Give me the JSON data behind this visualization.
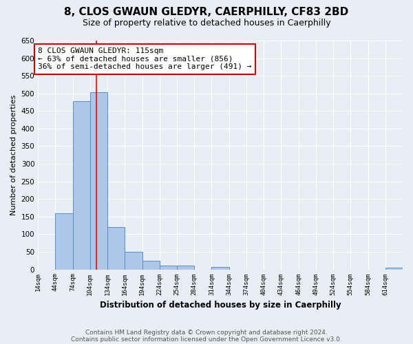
{
  "title": "8, CLOS GWAUN GLEDYR, CAERPHILLY, CF83 2BD",
  "subtitle": "Size of property relative to detached houses in Caerphilly",
  "xlabel": "Distribution of detached houses by size in Caerphilly",
  "ylabel": "Number of detached properties",
  "bar_left_edges": [
    14,
    44,
    74,
    104,
    134,
    164,
    194,
    224,
    254,
    284,
    314,
    344,
    374,
    404,
    434,
    464,
    494,
    524,
    554,
    584,
    614
  ],
  "bar_heights": [
    0,
    160,
    478,
    503,
    120,
    50,
    25,
    10,
    10,
    0,
    6,
    0,
    0,
    0,
    0,
    0,
    0,
    0,
    0,
    0,
    5
  ],
  "bin_width": 30,
  "bar_color": "#aec6e8",
  "bar_edge_color": "#5b8dc8",
  "ylim": [
    0,
    650
  ],
  "yticks": [
    0,
    50,
    100,
    150,
    200,
    250,
    300,
    350,
    400,
    450,
    500,
    550,
    600,
    650
  ],
  "xtick_labels": [
    "14sqm",
    "44sqm",
    "74sqm",
    "104sqm",
    "134sqm",
    "164sqm",
    "194sqm",
    "224sqm",
    "254sqm",
    "284sqm",
    "314sqm",
    "344sqm",
    "374sqm",
    "404sqm",
    "434sqm",
    "464sqm",
    "494sqm",
    "524sqm",
    "554sqm",
    "584sqm",
    "614sqm"
  ],
  "red_line_x": 115,
  "annotation_text": "8 CLOS GWAUN GLEDYR: 115sqm\n← 63% of detached houses are smaller (856)\n36% of semi-detached houses are larger (491) →",
  "annotation_box_color": "#ffffff",
  "annotation_box_edge_color": "#cc0000",
  "footer_line1": "Contains HM Land Registry data © Crown copyright and database right 2024.",
  "footer_line2": "Contains public sector information licensed under the Open Government Licence v3.0.",
  "bg_color": "#e8eef5",
  "grid_color": "#ffffff",
  "title_fontsize": 11,
  "subtitle_fontsize": 9,
  "annot_fontsize": 8,
  "footer_fontsize": 6.5
}
